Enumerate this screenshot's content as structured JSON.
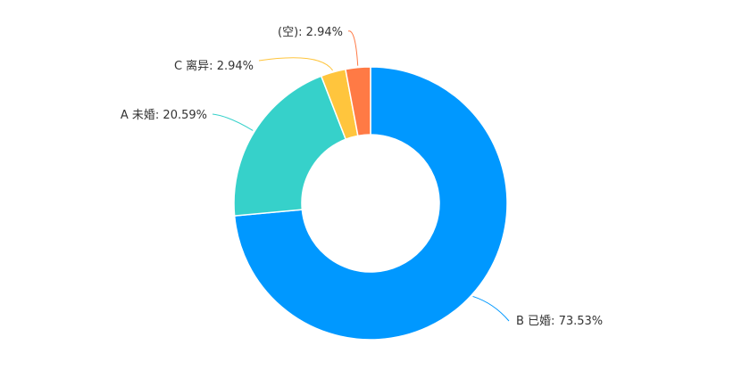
{
  "chart_data": {
    "type": "pie",
    "variant": "donut",
    "title": "",
    "legend": "none",
    "slices": [
      {
        "label": "B 已婚",
        "value": 73.53,
        "display": "B 已婚: 73.53%",
        "color": "#0098FF"
      },
      {
        "label": "A 未婚",
        "value": 20.59,
        "display": "A 未婚: 20.59%",
        "color": "#36D1CA"
      },
      {
        "label": "C 离异",
        "value": 2.94,
        "display": "C 离异: 2.94%",
        "color": "#FFC53D"
      },
      {
        "label": "(空)",
        "value": 2.94,
        "display": "(空): 2.94%",
        "color": "#FF7A45"
      }
    ]
  }
}
